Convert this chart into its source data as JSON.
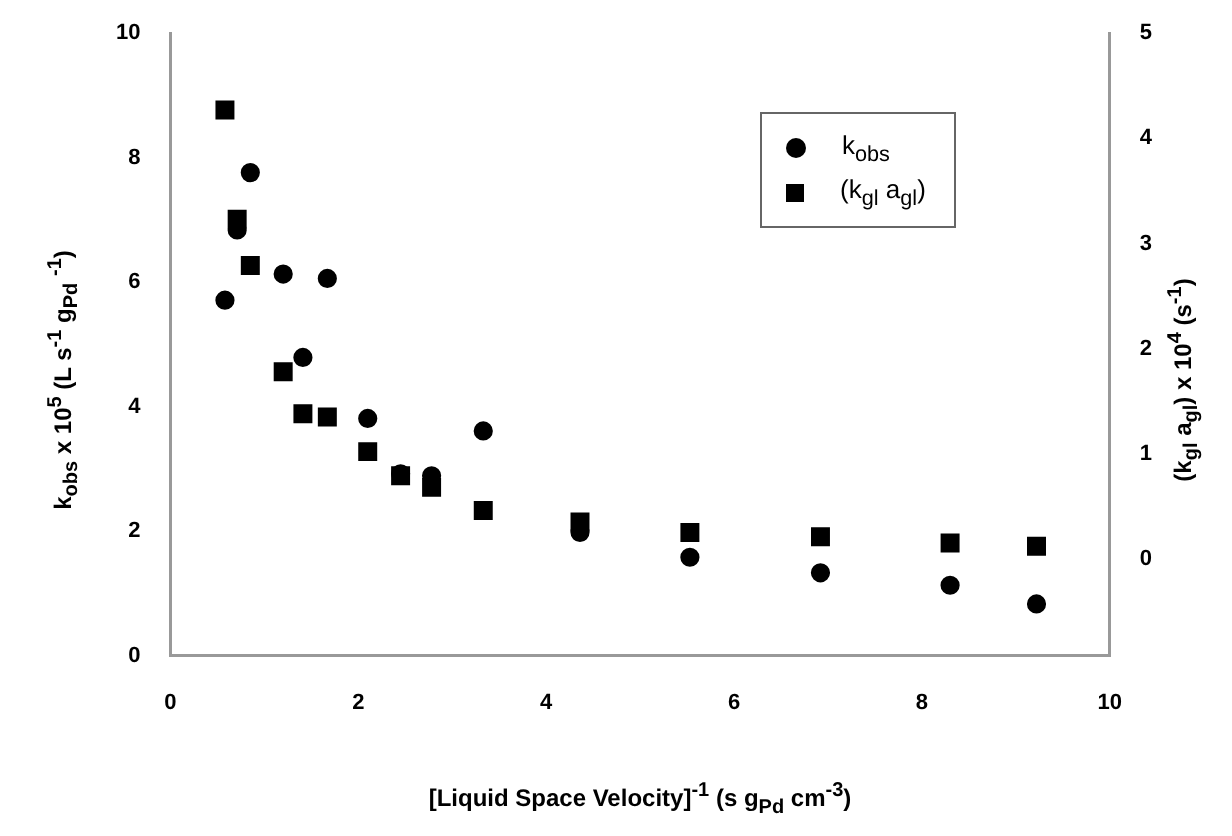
{
  "chart_data": {
    "type": "scatter",
    "xlabel": "[Liquid Space Velocity]$^{-1}$ (s g$_{Pd}$ cm$^{-3}$)",
    "ylabel": "k$_{obs}$ x 10$^{5}$ (L s$^{-1}$  g$_{Pd}$ $^{-1}$)",
    "y2label": "(k$_{gl}$ a$_{gl}$) x 10$^{4}$ (s$^{-1}$)",
    "x": [
      0.58,
      0.71,
      0.85,
      1.2,
      1.41,
      1.67,
      2.1,
      2.45,
      2.78,
      3.33,
      4.36,
      5.53,
      6.92,
      8.3,
      9.22
    ],
    "series": [
      {
        "name": "k$_{obs}$",
        "color": "#000000",
        "marker": "circle",
        "values": [
          5.71,
          6.84,
          7.76,
          6.13,
          4.79,
          6.06,
          3.81,
          2.92,
          2.89,
          3.61,
          1.98,
          1.58,
          1.33,
          1.13,
          0.83
        ]
      },
      {
        "name": "(k$_{gl}$ a$_{gl}$)",
        "color": "#000000",
        "marker": "square",
        "axis": "y2",
        "values": [
          4.27,
          3.23,
          2.79,
          1.78,
          1.38,
          1.35,
          1.02,
          0.79,
          0.68,
          0.46,
          0.35,
          0.25,
          0.21,
          0.15,
          0.12
        ]
      }
    ],
    "xlim": [
      0,
      10
    ],
    "xticks": [
      0,
      2,
      4,
      6,
      8,
      10
    ],
    "ylim": [
      0,
      10
    ],
    "yticks": [
      0,
      2,
      4,
      6,
      8,
      10
    ],
    "y2lim": [
      -0.92,
      5
    ],
    "y2ticks": [
      0,
      1,
      2,
      3,
      4,
      5
    ],
    "grid": false,
    "legend": "top right"
  }
}
